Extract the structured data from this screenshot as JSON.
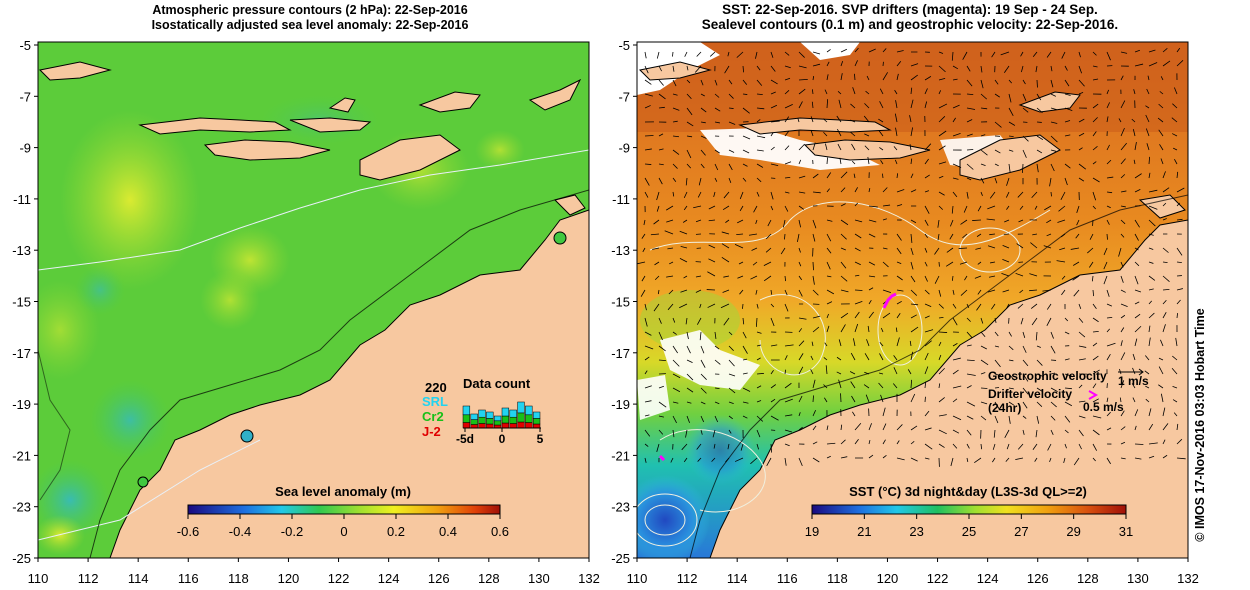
{
  "left_panel": {
    "title_line1": "Atmospheric pressure contours (2 hPa): 22-Sep-2016",
    "title_line2": "Isostatically adjusted sea level anomaly: 22-Sep-2016",
    "y_ticks": [
      "-5",
      "-7",
      "-9",
      "-11",
      "-13",
      "-15",
      "-17",
      "-19",
      "-21",
      "-23",
      "-25"
    ],
    "x_ticks": [
      "110",
      "112",
      "114",
      "116",
      "118",
      "120",
      "122",
      "124",
      "126",
      "128",
      "130",
      "132"
    ],
    "colorbar": {
      "label": "Sea level anomaly (m)",
      "ticks": [
        "-0.6",
        "-0.4",
        "-0.2",
        "0",
        "0.2",
        "0.4",
        "0.6"
      ]
    },
    "data_count": {
      "title": "Data count",
      "max_label": "220",
      "series": [
        {
          "name": "SRL",
          "color": "#22d3f0"
        },
        {
          "name": "Cr2",
          "color": "#18c018"
        },
        {
          "name": "J-2",
          "color": "#e00000"
        }
      ],
      "axis_ticks": [
        "-5d",
        "0",
        "5"
      ],
      "bars": [
        0.55,
        0.35,
        0.45,
        0.4,
        0.3,
        0.5,
        0.45,
        0.65,
        0.55,
        0.4
      ]
    }
  },
  "right_panel": {
    "title_line1": "SST: 22-Sep-2016. SVP drifters (magenta): 19 Sep - 24 Sep.",
    "title_line2": "Sealevel contours (0.1 m) and geostrophic velocity: 22-Sep-2016.",
    "y_ticks": [
      "-5",
      "-7",
      "-9",
      "-11",
      "-13",
      "-15",
      "-17",
      "-19",
      "-21",
      "-23",
      "-25"
    ],
    "x_ticks": [
      "110",
      "112",
      "114",
      "116",
      "118",
      "120",
      "122",
      "124",
      "126",
      "128",
      "130",
      "132"
    ],
    "colorbar": {
      "label": "SST (°C) 3d night&day (L3S-3d QL>=2)",
      "ticks": [
        "19",
        "21",
        "23",
        "25",
        "27",
        "29",
        "31"
      ]
    },
    "legend": {
      "geo_label": "Geostrophic velocity",
      "geo_value": "1 m/s",
      "drifter_label": "Drifter velocity",
      "drifter_sub": "(24hr)",
      "drifter_value": "0.5 m/s"
    }
  },
  "side_credit": "© IMOS 17-Nov-2016 03:03 Hobart Time",
  "colors": {
    "land": "#f7c8a0",
    "no_data": "#ffffff",
    "drifter": "#ff00ff"
  }
}
